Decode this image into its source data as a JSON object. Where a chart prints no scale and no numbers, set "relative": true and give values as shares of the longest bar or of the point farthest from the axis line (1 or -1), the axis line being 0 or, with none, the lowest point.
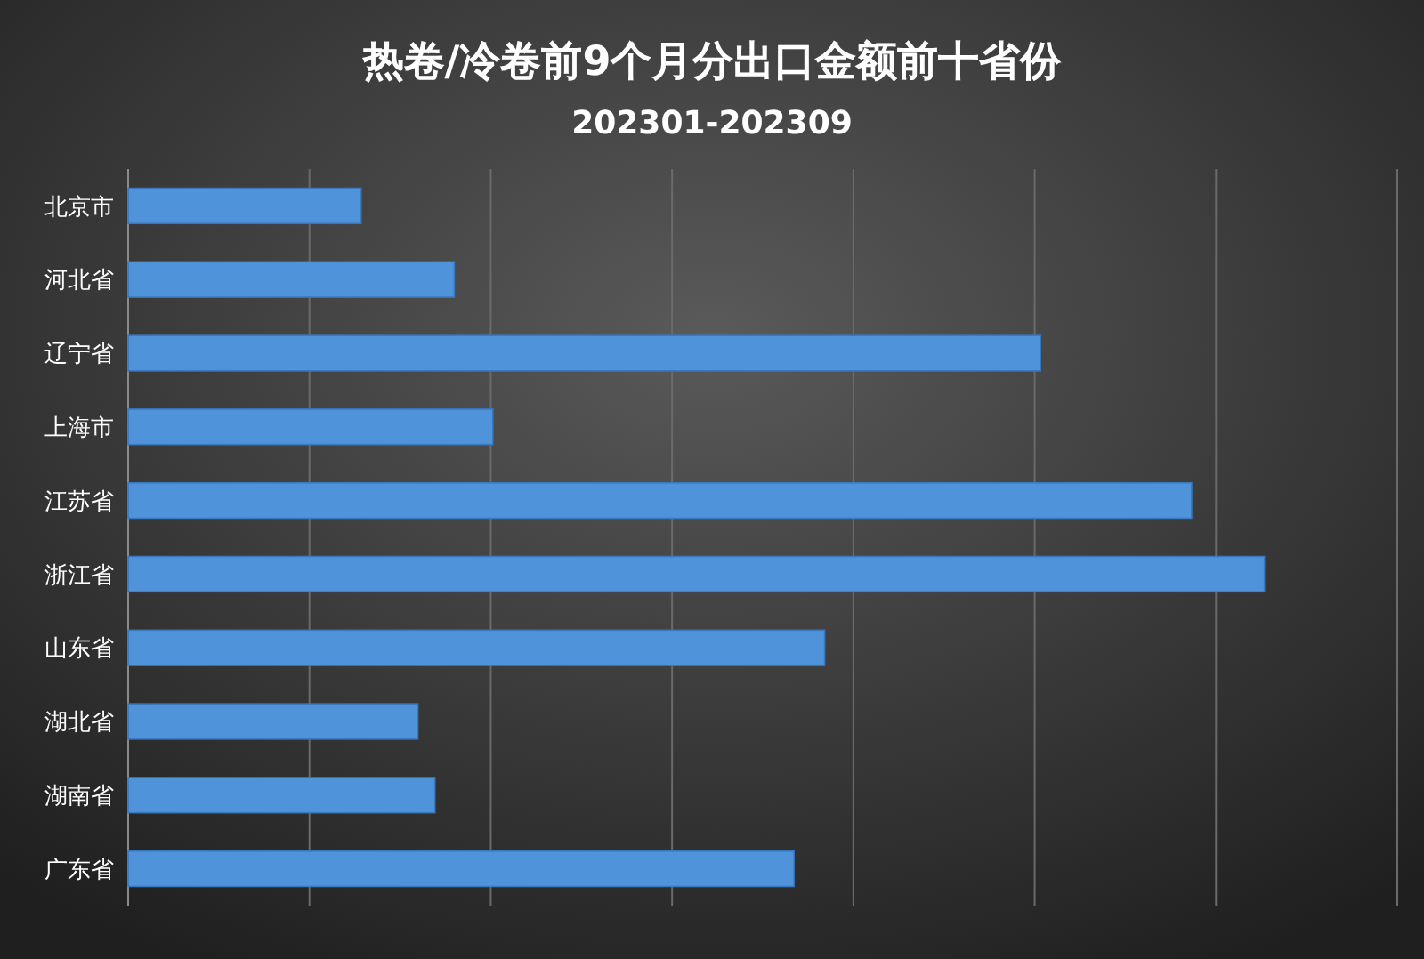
{
  "chart_data": {
    "type": "bar",
    "orientation": "horizontal",
    "relative": true,
    "title": "热卷/冷卷前9个月分出口金额前十省份",
    "subtitle": "202301-202309",
    "categories": [
      "北京市",
      "河北省",
      "辽宁省",
      "上海市",
      "江苏省",
      "浙江省",
      "山东省",
      "湖北省",
      "湖南省",
      "广东省"
    ],
    "values": [
      0.205,
      0.287,
      0.803,
      0.321,
      0.936,
      1,
      0.613,
      0.255,
      0.27,
      0.586
    ],
    "color": "#4f94db",
    "grid": "x"
  }
}
